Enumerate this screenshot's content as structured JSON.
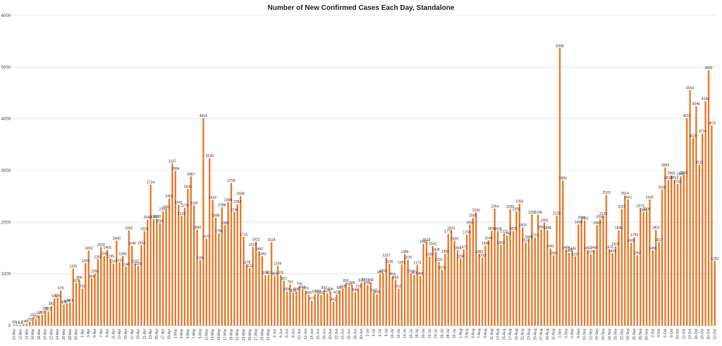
{
  "chart_data": {
    "type": "bar",
    "title": "Number of New Confirmed Cases Each Day, Standalone",
    "xlabel": "",
    "ylabel": "",
    "ylim": [
      0,
      6000
    ],
    "yticks": [
      "0",
      "1000",
      "2000",
      "3000",
      "4000",
      "5000",
      "6000"
    ],
    "grid": true,
    "legend": "none",
    "bar_color": "#ED7D31",
    "categories": [
      "10-Mar",
      "11-Mar",
      "12-Mar",
      "13-Mar",
      "14-Mar",
      "15-Mar",
      "16-Mar",
      "17-Mar",
      "18-Mar",
      "19-Mar",
      "20-Mar",
      "21-Mar",
      "22-Mar",
      "23-Mar",
      "24-Mar",
      "25-Mar",
      "26-Mar",
      "27-Mar",
      "28-Mar",
      "29-Mar",
      "30-Mar",
      "31-Mar",
      "1-Apr",
      "2-Apr",
      "3-Apr",
      "4-Apr",
      "5-Apr",
      "6-Apr",
      "7-Apr",
      "8-Apr",
      "9-Apr",
      "10-Apr",
      "11-Apr",
      "12-Apr",
      "13-Apr",
      "14-Apr",
      "15-Apr",
      "16-Apr",
      "17-Apr",
      "18-Apr",
      "19-Apr",
      "20-Apr",
      "21-Apr",
      "22-Apr",
      "23-Apr",
      "24-Apr",
      "25-Apr",
      "26-Apr",
      "27-Apr",
      "28-Apr",
      "29-Apr",
      "30-Apr",
      "1-May",
      "2-May",
      "3-May",
      "4-May",
      "5-May",
      "6-May",
      "7-May",
      "8-May",
      "9-May",
      "10-May",
      "11-May",
      "12-May",
      "13-May",
      "14-May",
      "15-May",
      "16-May",
      "17-May",
      "18-May",
      "19-May",
      "20-May",
      "21-May",
      "22-May",
      "23-May",
      "24-May",
      "25-May",
      "26-May",
      "27-May",
      "28-May",
      "29-May",
      "30-May",
      "31-May",
      "1-Jun",
      "2-Jun",
      "3-Jun",
      "4-Jun",
      "5-Jun",
      "6-Jun",
      "7-Jun",
      "8-Jun",
      "9-Jun",
      "10-Jun",
      "11-Jun",
      "12-Jun",
      "13-Jun",
      "14-Jun",
      "15-Jun",
      "16-Jun",
      "17-Jun",
      "18-Jun",
      "19-Jun",
      "20-Jun",
      "21-Jun",
      "22-Jun",
      "23-Jun",
      "24-Jun",
      "25-Jun",
      "26-Jun",
      "27-Jun",
      "28-Jun",
      "29-Jun",
      "30-Jun",
      "1-Jul",
      "2-Jul",
      "3-Jul",
      "4-Jul",
      "5-Jul",
      "6-Jul",
      "7-Jul",
      "8-Jul",
      "9-Jul",
      "10-Jul",
      "11-Jul",
      "12-Jul",
      "13-Jul",
      "14-Jul",
      "15-Jul",
      "16-Jul",
      "17-Jul",
      "18-Jul",
      "19-Jul",
      "20-Jul",
      "21-Jul",
      "22-Jul",
      "23-Jul",
      "24-Jul",
      "25-Jul",
      "26-Jul",
      "27-Jul",
      "28-Jul",
      "29-Jul",
      "30-Jul",
      "31-Jul",
      "1-Aug",
      "2-Aug",
      "3-Aug",
      "4-Aug",
      "5-Aug",
      "6-Aug",
      "7-Aug",
      "8-Aug",
      "9-Aug",
      "10-Aug",
      "11-Aug",
      "12-Aug",
      "13-Aug",
      "14-Aug",
      "15-Aug",
      "16-Aug",
      "17-Aug",
      "18-Aug",
      "19-Aug",
      "20-Aug",
      "21-Aug",
      "22-Aug",
      "23-Aug",
      "24-Aug",
      "25-Aug",
      "26-Aug",
      "27-Aug",
      "28-Aug",
      "29-Aug",
      "30-Aug",
      "31-Aug",
      "1-Sep",
      "2-Sep",
      "3-Sep",
      "4-Sep",
      "5-Sep",
      "6-Sep",
      "7-Sep",
      "8-Sep",
      "9-Sep",
      "10-Sep",
      "11-Sep",
      "12-Sep",
      "13-Sep",
      "14-Sep",
      "15-Sep",
      "16-Sep",
      "17-Sep",
      "18-Sep",
      "19-Sep",
      "20-Sep",
      "21-Sep",
      "22-Sep",
      "23-Sep",
      "24-Sep",
      "25-Sep",
      "26-Sep",
      "27-Sep",
      "28-Sep",
      "29-Sep",
      "30-Sep",
      "1-Oct",
      "2-Oct",
      "3-Oct",
      "4-Oct",
      "5-Oct",
      "6-Oct",
      "7-Oct",
      "8-Oct",
      "9-Oct",
      "10-Oct",
      "11-Oct",
      "12-Oct",
      "13-Oct",
      "14-Oct",
      "15-Oct",
      "16-Oct",
      "17-Oct",
      "18-Oct",
      "19-Oct",
      "20-Oct",
      "21-Oct",
      "22-Oct"
    ],
    "values": [
      20,
      14,
      14,
      27,
      40,
      75,
      163,
      126,
      197,
      210,
      288,
      272,
      382,
      530,
      535,
      679,
      408,
      428,
      441,
      1105,
      827,
      886,
      715,
      1209,
      1453,
      909,
      1006,
      1283,
      1520,
      1348,
      1465,
      1295,
      1197,
      1640,
      1223,
      1346,
      1140,
      1842,
      1545,
      1197,
      1155,
      1553,
      1826,
      2049,
      2724,
      2060,
      2068,
      1980,
      2207,
      2253,
      2462,
      3137,
      2994,
      2341,
      2122,
      2278,
      2643,
      2887,
      2325,
      1856,
      1266,
      4014,
      1677,
      3239,
      2432,
      2088,
      1784,
      2288,
      1945,
      2388,
      2758,
      2196,
      2352,
      2508,
      1715,
      1178,
      1113,
      1523,
      1622,
      1442,
      1343,
      974,
      982,
      1614,
      964,
      1156,
      975,
      867,
      658,
      797,
      636,
      658,
      766,
      698,
      676,
      595,
      477,
      613,
      623,
      593,
      692,
      625,
      658,
      462,
      603,
      688,
      715,
      826,
      750,
      786,
      646,
      719,
      833,
      844,
      785,
      840,
      643,
      606,
      989,
      1018,
      1317,
      1195,
      954,
      883,
      707,
      1181,
      1384,
      1276,
      1010,
      981,
      1173,
      958,
      1582,
      1619,
      1334,
      1541,
      1428,
      1231,
      1076,
      1388,
      1772,
      1841,
      1639,
      1461,
      1298,
      1472,
      1759,
      1953,
      2085,
      2190,
      1382,
      1319,
      1548,
      1649,
      1834,
      2264,
      1828,
      1562,
      1772,
      1742,
      2255,
      1832,
      2208,
      2356,
      1903,
      1612,
      1668,
      2151,
      1705,
      2148,
      1861,
      1992,
      1848,
      1491,
      1360,
      2128,
      5368,
      2806,
      1466,
      1405,
      1445,
      1337,
      1958,
      2046,
      2031,
      1462,
      1379,
      1466,
      1943,
      2058,
      2120,
      2529,
      1476,
      1401,
      1531,
      1848,
      2257,
      2514,
      2441,
      1603,
      1709,
      1362,
      2273,
      2196,
      2206,
      2442,
      1455,
      1853,
      1617,
      2630,
      3059,
      2818,
      2905,
      2813,
      2742,
      2888,
      2910,
      4015,
      4554,
      3629,
      4245,
      3113,
      3714,
      4342,
      4942,
      3874,
      1250
    ]
  }
}
